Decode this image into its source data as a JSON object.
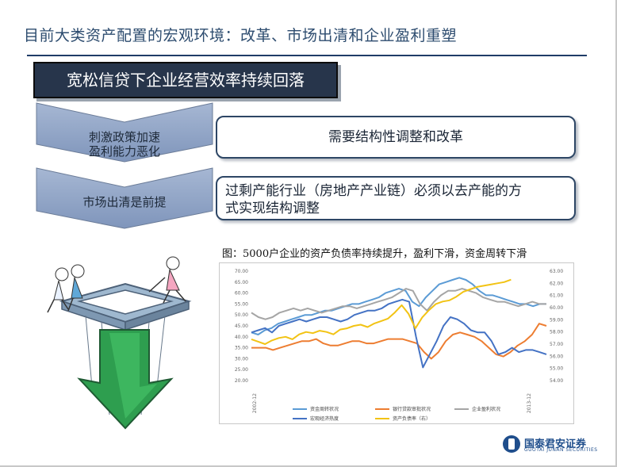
{
  "title": "目前大类资产配置的宏观环境：改革、市场出清和企业盈利重塑",
  "headline_box": "宽松信贷下企业经营效率持续回落",
  "chevrons": [
    {
      "line1": "刺激政策加速",
      "line2": "盈利能力恶化"
    },
    {
      "line1": "市场出清是前提",
      "line2": ""
    }
  ],
  "pills": [
    {
      "text": "需要结构性调整和改革"
    },
    {
      "line1": "过剩产能行业（房地产产业链）必须以去产能的方",
      "line2": "式实现结构调整"
    }
  ],
  "chart_caption": "图：5000户企业的资产负债率持续提升，盈利下滑，资金周转下滑",
  "chart_data": {
    "type": "line",
    "title": "",
    "y_left": {
      "lim": [
        20,
        70
      ],
      "ticks": [
        "20.00",
        "25.00",
        "30.00",
        "35.00",
        "40.00",
        "45.00",
        "50.00",
        "55.00",
        "60.00",
        "65.00",
        "70.00"
      ]
    },
    "y_right": {
      "lim": [
        54,
        63
      ],
      "ticks": [
        "54.00",
        "55.00",
        "56.00",
        "57.00",
        "58.00",
        "59.00",
        "60.00",
        "61.00",
        "62.00",
        "63.00"
      ]
    },
    "x_tick_labels": [
      "2002-12",
      "2013-12"
    ],
    "series": [
      {
        "name": "资金周转状况",
        "color": "#5b9bd5",
        "axis": "left",
        "values": [
          42,
          41,
          43,
          44,
          46,
          47,
          48,
          49,
          50,
          50,
          51,
          52,
          52,
          53,
          54,
          55,
          55,
          56,
          57,
          58,
          60,
          61,
          62,
          61,
          56,
          54,
          58,
          61,
          64,
          65,
          66,
          67,
          66,
          64,
          61,
          59,
          59,
          58,
          57,
          56,
          55,
          55,
          54,
          55,
          55
        ]
      },
      {
        "name": "银行贷款审批状况",
        "color": "#ed7d31",
        "axis": "left",
        "values": [
          35,
          35,
          35,
          34,
          35,
          36,
          37,
          38,
          38,
          39,
          37,
          36,
          36,
          37,
          38,
          38,
          37,
          37,
          38,
          39,
          39,
          39,
          38,
          37,
          33,
          30,
          33,
          38,
          41,
          42,
          41,
          40,
          38,
          35,
          32,
          31,
          33,
          36,
          38,
          41,
          46,
          45
        ]
      },
      {
        "name": "企业盈利状况",
        "color": "#a5a5a5",
        "axis": "left",
        "values": [
          51,
          49,
          48,
          49,
          51,
          52,
          53,
          52,
          53,
          52,
          51,
          52,
          53,
          54,
          54,
          53,
          54,
          55,
          56,
          57,
          58,
          60,
          62,
          61,
          55,
          52,
          56,
          59,
          61,
          61,
          62,
          61,
          60,
          58,
          57,
          56,
          56,
          55,
          54,
          55,
          56,
          55,
          55
        ]
      },
      {
        "name": "宏观经济热度",
        "color": "#4472c4",
        "axis": "left",
        "values": [
          42,
          43,
          44,
          42,
          45,
          46,
          47,
          48,
          47,
          48,
          49,
          49,
          48,
          47,
          48,
          50,
          51,
          52,
          52,
          53,
          55,
          56,
          57,
          56,
          40,
          26,
          32,
          38,
          45,
          49,
          48,
          46,
          43,
          42,
          42,
          38,
          32,
          33,
          35,
          33,
          34,
          34,
          33,
          32
        ]
      },
      {
        "name": "资产负债率（右）",
        "color": "#f2c314",
        "axis": "right",
        "values": [
          57.4,
          57.2,
          57.0,
          57.3,
          57.5,
          57.6,
          57.4,
          57.8,
          58.0,
          57.9,
          58.1,
          58.0,
          57.8,
          58.2,
          58.3,
          58.5,
          58.6,
          58.4,
          58.7,
          58.9,
          59.1,
          59.6,
          60.2,
          59.5,
          58.3,
          59.2,
          59.8,
          60.3,
          60.5,
          60.6,
          60.9,
          61.3,
          61.5,
          61.7,
          61.8,
          61.9,
          62.0,
          62.1,
          62.3
        ]
      }
    ],
    "legend": [
      {
        "label": "资金周转状况",
        "color": "#5b9bd5"
      },
      {
        "label": "银行贷款审批状况",
        "color": "#ed7d31"
      },
      {
        "label": "企业盈利状况",
        "color": "#a5a5a5"
      },
      {
        "label": "宏观经济热度",
        "color": "#4472c4"
      },
      {
        "label": "资产负债率（右）",
        "color": "#f2c314"
      }
    ]
  },
  "logo": {
    "cn": "国泰君安证券",
    "en": "GUOTAI JUNAN SECURITIES"
  },
  "colors": {
    "title": "#2d4c6f",
    "rule": "#1f3c67",
    "chevron_fill": "#8fa4c6",
    "box_fill": "#27354b"
  },
  "illustration": "children-pushing-cube-and-green-arrow"
}
